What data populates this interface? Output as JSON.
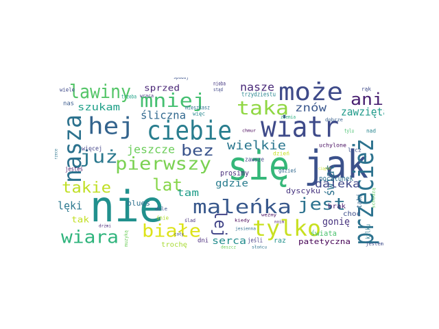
{
  "word_cloud": {
    "words": [
      {
        "text": "nie",
        "color": "#21908d"
      },
      {
        "text": "jak",
        "color": "#3b518b"
      },
      {
        "text": "się",
        "color": "#35b779"
      },
      {
        "text": "przecież",
        "color": "#2c728e"
      },
      {
        "text": "wiatr",
        "color": "#3e4a89"
      },
      {
        "text": "ciebie",
        "color": "#287d8e"
      },
      {
        "text": "może",
        "color": "#3e4a89"
      },
      {
        "text": "nasza",
        "color": "#2c728e"
      },
      {
        "text": "maleńka",
        "color": "#38588c"
      },
      {
        "text": "tylko",
        "color": "#c8e020"
      },
      {
        "text": "hej",
        "color": "#33638d"
      },
      {
        "text": "mniej",
        "color": "#44bf70"
      },
      {
        "text": "lawiny",
        "color": "#54c568"
      },
      {
        "text": "taka",
        "color": "#90d743"
      },
      {
        "text": "ani",
        "color": "#481f70"
      },
      {
        "text": "już",
        "color": "#2a788e"
      },
      {
        "text": "pierwszy",
        "color": "#7ad151"
      },
      {
        "text": "białe",
        "color": "#dde318"
      },
      {
        "text": "wiara",
        "color": "#2fb47c"
      },
      {
        "text": "jest",
        "color": "#2c728e"
      },
      {
        "text": "lej",
        "color": "#414487"
      },
      {
        "text": "lat",
        "color": "#86d549"
      },
      {
        "text": "bez",
        "color": "#3a548c"
      },
      {
        "text": "takie",
        "color": "#c0df25"
      },
      {
        "text": "wielkie",
        "color": "#2a768e"
      },
      {
        "text": "świat",
        "color": "#2c718e"
      },
      {
        "text": "daleka",
        "color": "#3f4889"
      },
      {
        "text": "zawzięta",
        "color": "#1f9a8a"
      },
      {
        "text": "znów",
        "color": "#39568c"
      },
      {
        "text": "nasze",
        "color": "#482878"
      },
      {
        "text": "szukam",
        "color": "#1fa088"
      },
      {
        "text": "śliczna",
        "color": "#31688e"
      },
      {
        "text": "jeszcze",
        "color": "#6ccd5a"
      },
      {
        "text": "tam",
        "color": "#1e9c89"
      },
      {
        "text": "gdzie",
        "color": "#287c8e"
      },
      {
        "text": "lęki",
        "color": "#2a778e"
      },
      {
        "text": "gonię",
        "color": "#46327e"
      },
      {
        "text": "serca",
        "color": "#228c8d"
      },
      {
        "text": "sprzed",
        "color": "#482475"
      },
      {
        "text": "tak",
        "color": "#c2df23"
      },
      {
        "text": "blues",
        "color": "#2d708e"
      },
      {
        "text": "dyscyku",
        "color": "#46337f"
      },
      {
        "text": "pocałunek",
        "color": "#2d718e"
      },
      {
        "text": "prosimy",
        "color": "#472d7b"
      },
      {
        "text": "patetyczna",
        "color": "#440154"
      },
      {
        "text": "świata",
        "color": "#4ac16d"
      },
      {
        "text": "brak",
        "color": "#481d6f"
      },
      {
        "text": "choć",
        "color": "#3d4d8a"
      },
      {
        "text": "trochę",
        "color": "#a8db34"
      },
      {
        "text": "raz",
        "color": "#21918c"
      },
      {
        "text": "dni",
        "color": "#482979"
      },
      {
        "text": "jeśli",
        "color": "#443a83"
      },
      {
        "text": "taki",
        "color": "#31688e"
      },
      {
        "text": "kilku",
        "color": "#29798e"
      },
      {
        "text": "jesteś",
        "color": "#470e61"
      },
      {
        "text": "więcej",
        "color": "#414287"
      },
      {
        "text": "nas",
        "color": "#38598c"
      },
      {
        "text": "wiele",
        "color": "#3e4989"
      },
      {
        "text": "trzeba",
        "color": "#1fa187"
      },
      {
        "text": "wraca",
        "color": "#46337f"
      },
      {
        "text": "spadaj",
        "color": "#3b528b"
      },
      {
        "text": "nieba",
        "color": "#453781"
      },
      {
        "text": "stąd",
        "color": "#3f4788"
      },
      {
        "text": "trzydziestu",
        "color": "#25848e"
      },
      {
        "text": "mieszkasz",
        "color": "#2c718e"
      },
      {
        "text": "więc",
        "color": "#24868e"
      },
      {
        "text": "zawsze",
        "color": "#404588"
      },
      {
        "text": "ziemia",
        "color": "#29af7f"
      },
      {
        "text": "dobrze",
        "color": "#355f8d"
      },
      {
        "text": "rąk",
        "color": "#3e4a89"
      },
      {
        "text": "tylu",
        "color": "#46c06f"
      },
      {
        "text": "nad",
        "color": "#25848e"
      },
      {
        "text": "uchylone",
        "color": "#470d60"
      },
      {
        "text": "lecz",
        "color": "#3c508b"
      },
      {
        "text": "dzień",
        "color": "#c5e021"
      },
      {
        "text": "chmur",
        "color": "#440256"
      },
      {
        "text": "gdzieś",
        "color": "#31688e"
      },
      {
        "text": "śnie",
        "color": "#b2dd2d"
      },
      {
        "text": "dole",
        "color": "#3b528b"
      },
      {
        "text": "kiedy",
        "color": "#440154"
      },
      {
        "text": "ślad",
        "color": "#472f7d"
      },
      {
        "text": "cały",
        "color": "#404688"
      },
      {
        "text": "jesienna",
        "color": "#2e6d8e"
      },
      {
        "text": "deszcz",
        "color": "#6ece58"
      },
      {
        "text": "słońcu",
        "color": "#2c738e"
      },
      {
        "text": "jestem",
        "color": "#3e4c8a"
      },
      {
        "text": "drżmi",
        "color": "#482677"
      },
      {
        "text": "muzyką",
        "color": "#6ccd5a"
      },
      {
        "text": "weźmy",
        "color": "#470d60"
      },
      {
        "text": "schodzą",
        "color": "#5ec962"
      },
      {
        "text": "ciągle",
        "color": "#c8e020"
      },
      {
        "text": "noim",
        "color": "#481668"
      },
      {
        "text": "rzece",
        "color": "#2b758e"
      }
    ]
  }
}
